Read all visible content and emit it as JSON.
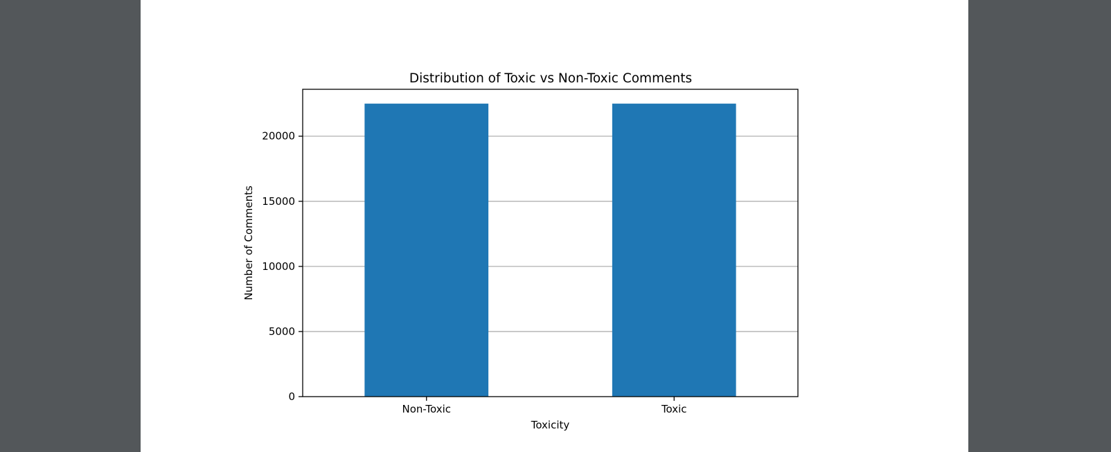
{
  "colors": {
    "viewer_background": "#53575a",
    "page_background": "#ffffff",
    "bar_color": "#1f77b4",
    "grid_color": "#b0b0b0"
  },
  "chart_data": {
    "type": "bar",
    "title": "Distribution of Toxic vs Non-Toxic Comments",
    "xlabel": "Toxicity",
    "ylabel": "Number of Comments",
    "categories": [
      "Non-Toxic",
      "Toxic"
    ],
    "values": [
      22500,
      22500
    ],
    "ylim": [
      0,
      23600
    ],
    "yticks": [
      0,
      5000,
      10000,
      15000,
      20000
    ],
    "ytick_labels": [
      "0",
      "5000",
      "10000",
      "15000",
      "20000"
    ],
    "grid": "horizontal",
    "legend": "none"
  }
}
